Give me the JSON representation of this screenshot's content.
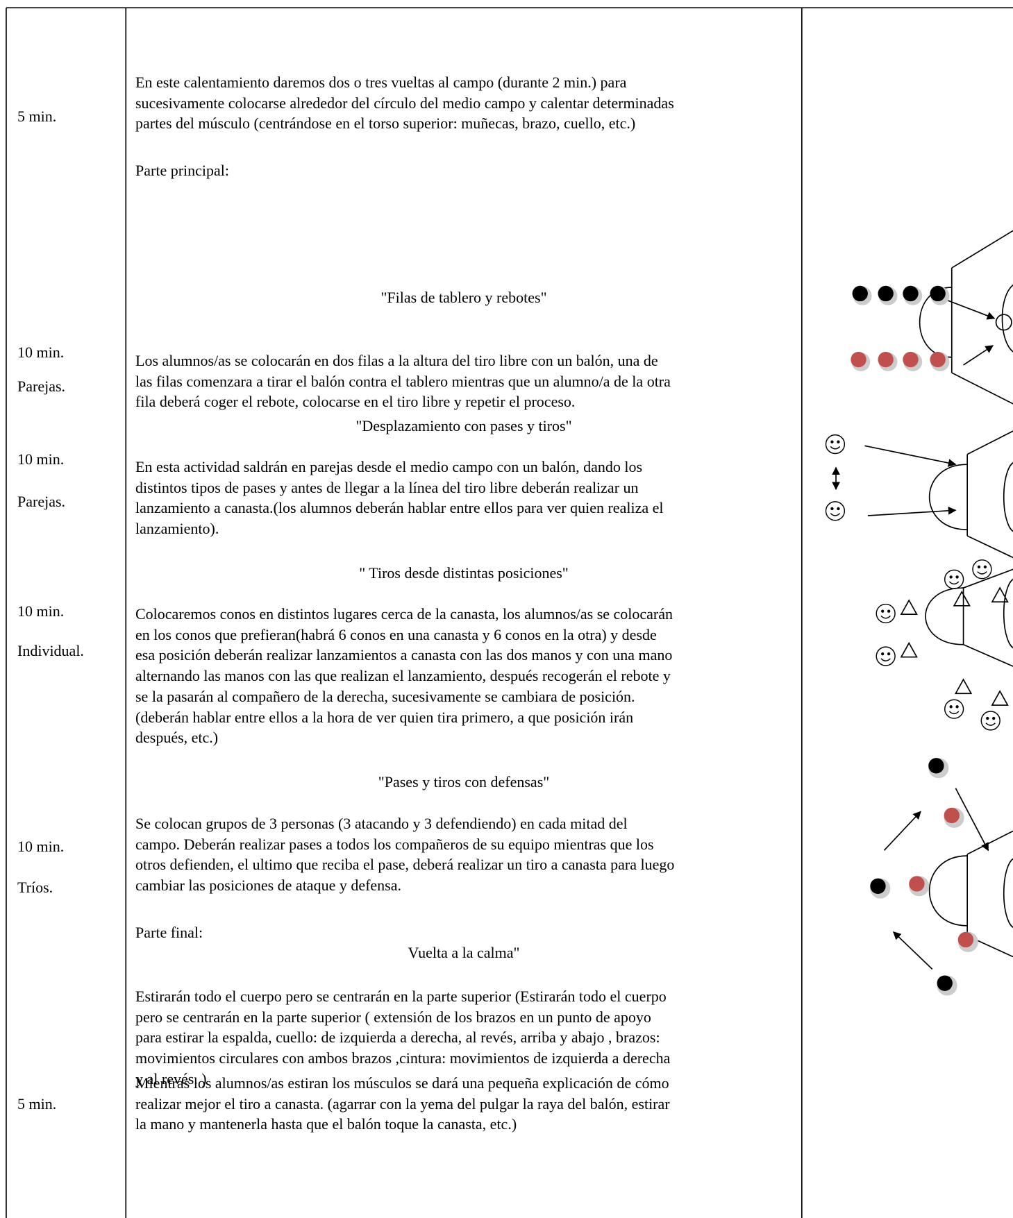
{
  "left_column": [
    "5 min.",
    "10 min.",
    "Parejas.",
    "10 min.",
    "Parejas.",
    "10 min.",
    "Individual.",
    "10 min.",
    "Tríos.",
    "5 min."
  ],
  "main_column": {
    "warmup": [
      "En este calentamiento daremos dos o tres vueltas al campo  (durante 2 min.)  para",
      "sucesivamente colocarse alrededor del círculo del medio campo y calentar determinadas",
      "partes del músculo (centrándose en el torso superior: muñecas, brazo, cuello, etc.)"
    ],
    "section_main": "Parte principal:",
    "activities": [
      {
        "title": "\"Filas de tablero y rebotes\"",
        "description": [
          "Los alumnos/as se colocarán en dos filas a la altura del tiro libre con un balón, una de",
          "las filas comenzara a tirar el balón contra el tablero mientras que un alumno/a de la otra",
          "fila deberá coger el rebote, colocarse en el tiro libre y repetir el proceso."
        ]
      },
      {
        "title": "\"Desplazamiento con pases y tiros\"",
        "description": [
          "En esta actividad saldrán en parejas desde el medio campo con un balón, dando los",
          "distintos tipos de pases y antes de llegar a la línea del tiro libre deberán realizar un",
          "lanzamiento a canasta.(los alumnos deberán hablar entre ellos para ver quien realiza el",
          "lanzamiento)."
        ]
      },
      {
        "title": "\" Tiros desde distintas posiciones\"",
        "description": [
          "Colocaremos conos en distintos lugares cerca de la canasta, los alumnos/as se colocarán",
          "en los conos que prefieran(habrá 6 conos en una canasta y 6 conos en la otra) y desde",
          "esa posición deberán realizar lanzamientos a canasta con las dos manos y con una mano",
          "alternando las manos con las que realizan el lanzamiento, después recogerán el rebote y",
          "se la pasarán al compañero de la derecha, sucesivamente se cambiara de posición.",
          "(deberán hablar entre ellos a la hora de ver quien tira primero, a que posición irán",
          "después, etc.)"
        ]
      },
      {
        "title": "\"Pases y tiros con defensas\"",
        "description": [
          "Se colocan grupos de 3 personas  (3 atacando y 3 defendiendo) en cada mitad del",
          "campo. Deberán realizar pases a todos los compañeros de su equipo mientras que los",
          "otros defienden, el ultimo que reciba el pase, deberá realizar un tiro a canasta para luego",
          "cambiar las posiciones de ataque y defensa."
        ]
      }
    ],
    "section_final": "Parte final:",
    "cooldown_title": "Vuelta a la calma\"",
    "cooldown": [
      "Estirarán todo el cuerpo pero se centrarán en la parte superior (Estirarán todo el cuerpo",
      "pero se centrarán en la parte superior ( extensión de los brazos en un punto de apoyo",
      "para estirar la espalda, cuello: de izquierda a derecha, al revés, arriba y abajo , brazos:",
      "movimientos circulares con ambos brazos ,cintura: movimientos de izquierda a derecha",
      "y al revés.  )"
    ],
    "explanation": [
      "Mientras los alumnos/as estiran los músculos se dará una pequeña explicación de cómo",
      "realizar mejor el tiro a canasta. (agarrar con la yema del pulgar la raya del balón, estirar",
      "la mano y mantenerla hasta que el balón toque la canasta, etc.)"
    ]
  }
}
